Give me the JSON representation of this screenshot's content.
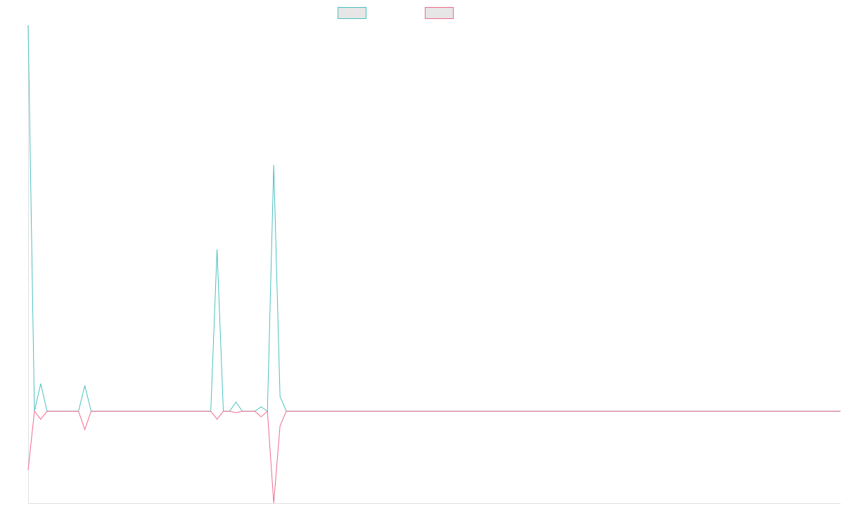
{
  "chart_data": {
    "type": "line",
    "title": "",
    "xlabel": "",
    "ylabel": "",
    "legend_position": "top-center",
    "grid": false,
    "x_count": 130,
    "ylim": [
      -25,
      105
    ],
    "series": [
      {
        "color": "#4bc0c0",
        "legend_fill": "#e6e6e6",
        "points": [
          [
            0,
            105
          ],
          [
            1,
            0
          ],
          [
            2,
            7.5
          ],
          [
            3,
            0
          ],
          [
            8,
            0
          ],
          [
            9,
            7
          ],
          [
            10,
            0
          ],
          [
            29,
            0
          ],
          [
            30,
            44
          ],
          [
            31,
            0
          ],
          [
            32,
            0
          ],
          [
            33,
            2.5
          ],
          [
            34,
            0
          ],
          [
            36,
            0
          ],
          [
            37,
            1.2
          ],
          [
            38,
            0
          ],
          [
            39,
            67
          ],
          [
            40,
            4
          ],
          [
            41,
            0
          ],
          [
            129,
            0
          ]
        ]
      },
      {
        "color": "#f06a8c",
        "legend_fill": "#e6e6e6",
        "points": [
          [
            0,
            -16
          ],
          [
            1,
            0
          ],
          [
            2,
            -2.2
          ],
          [
            3,
            0
          ],
          [
            8,
            0
          ],
          [
            9,
            -5
          ],
          [
            10,
            0
          ],
          [
            29,
            0
          ],
          [
            30,
            -2.2
          ],
          [
            31,
            0
          ],
          [
            32,
            0
          ],
          [
            33,
            -0.4
          ],
          [
            34,
            0
          ],
          [
            36,
            0
          ],
          [
            37,
            -1.5
          ],
          [
            38,
            0
          ],
          [
            39,
            -25
          ],
          [
            40,
            -4
          ],
          [
            41,
            0
          ],
          [
            129,
            0
          ]
        ]
      }
    ]
  }
}
